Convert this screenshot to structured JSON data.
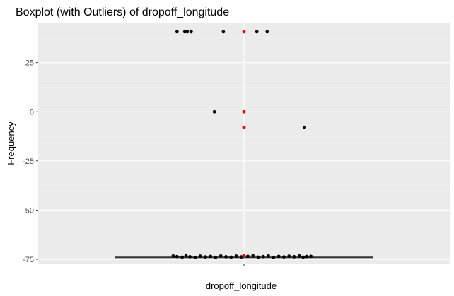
{
  "chart_data": {
    "type": "boxplot",
    "title": "Boxplot (with Outliers) of  dropoff_longitude",
    "xlabel": "dropoff_longitude",
    "ylabel": "Frequency",
    "category": "dropoff_longitude",
    "ylim": [
      -77.5,
      45
    ],
    "yticks": [
      25,
      0,
      -25,
      -50,
      -75
    ],
    "ytick_labels": [
      "25",
      "0",
      "-25",
      "-50",
      "-75"
    ],
    "grid": true,
    "colors": {
      "panel": "#ebebeb",
      "grid_major": "#ffffff",
      "grid_minor": "#f3f3f3",
      "points": "#000000",
      "highlight": "#ff0000",
      "box_line": "#333333"
    },
    "box": {
      "q1": -73.99,
      "median": -73.98,
      "q3": -73.96,
      "whisker_low": -74.05,
      "whisker_high": -73.9
    },
    "jitter_points": [
      {
        "x": -0.52,
        "y": 40.7
      },
      {
        "x": -0.46,
        "y": 40.7
      },
      {
        "x": -0.44,
        "y": 40.7
      },
      {
        "x": -0.41,
        "y": 40.7
      },
      {
        "x": -0.16,
        "y": 40.7
      },
      {
        "x": 0.1,
        "y": 40.7
      },
      {
        "x": 0.18,
        "y": 40.7
      },
      {
        "x": -0.23,
        "y": 0
      },
      {
        "x": 0.47,
        "y": -7.9
      },
      {
        "x": -0.55,
        "y": -73.3
      },
      {
        "x": -0.52,
        "y": -73.6
      },
      {
        "x": -0.48,
        "y": -73.9
      },
      {
        "x": -0.45,
        "y": -73.2
      },
      {
        "x": -0.42,
        "y": -73.7
      },
      {
        "x": -0.38,
        "y": -74.1
      },
      {
        "x": -0.34,
        "y": -73.4
      },
      {
        "x": -0.3,
        "y": -73.8
      },
      {
        "x": -0.26,
        "y": -73.5
      },
      {
        "x": -0.22,
        "y": -74.0
      },
      {
        "x": -0.18,
        "y": -73.3
      },
      {
        "x": -0.14,
        "y": -73.7
      },
      {
        "x": -0.1,
        "y": -73.9
      },
      {
        "x": -0.06,
        "y": -73.4
      },
      {
        "x": -0.02,
        "y": -73.8
      },
      {
        "x": 0.03,
        "y": -73.5
      },
      {
        "x": 0.07,
        "y": -73.2
      },
      {
        "x": 0.11,
        "y": -73.9
      },
      {
        "x": 0.15,
        "y": -73.6
      },
      {
        "x": 0.19,
        "y": -73.3
      },
      {
        "x": 0.23,
        "y": -74.0
      },
      {
        "x": 0.27,
        "y": -73.5
      },
      {
        "x": 0.31,
        "y": -73.8
      },
      {
        "x": 0.35,
        "y": -73.4
      },
      {
        "x": 0.39,
        "y": -73.7
      },
      {
        "x": 0.43,
        "y": -73.3
      },
      {
        "x": 0.46,
        "y": -73.9
      },
      {
        "x": 0.49,
        "y": -73.6
      },
      {
        "x": 0.52,
        "y": -73.5
      }
    ],
    "highlight_points": [
      {
        "x": 0,
        "y": 40.7
      },
      {
        "x": 0,
        "y": 0
      },
      {
        "x": 0,
        "y": -7.9
      },
      {
        "x": 0,
        "y": -73.2
      }
    ]
  }
}
